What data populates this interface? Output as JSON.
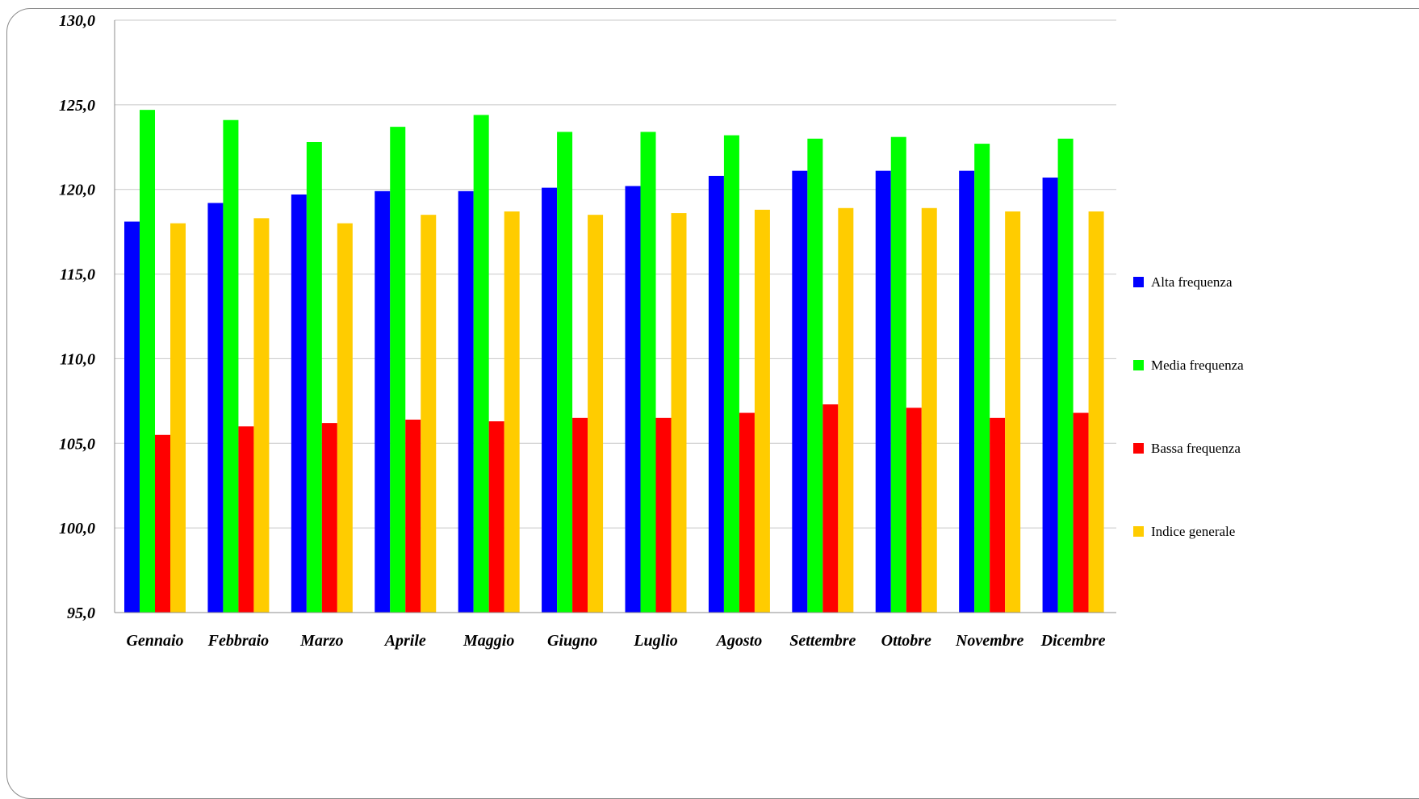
{
  "chart_data": {
    "type": "bar",
    "title": "",
    "xlabel": "",
    "ylabel": "",
    "ylim": [
      95,
      130
    ],
    "yticks": [
      95,
      100,
      105,
      110,
      115,
      120,
      125,
      130
    ],
    "ytick_labels": [
      "95,0",
      "100,0",
      "105,0",
      "110,0",
      "115,0",
      "120,0",
      "125,0",
      "130,0"
    ],
    "grid": true,
    "legend_position": "right",
    "categories": [
      "Gennaio",
      "Febbraio",
      "Marzo",
      "Aprile",
      "Maggio",
      "Giugno",
      "Luglio",
      "Agosto",
      "Settembre",
      "Ottobre",
      "Novembre",
      "Dicembre"
    ],
    "series": [
      {
        "name": "Alta frequenza",
        "color": "#0000ff",
        "values": [
          118.1,
          119.2,
          119.7,
          119.9,
          119.9,
          120.1,
          120.2,
          120.8,
          121.1,
          121.1,
          121.1,
          120.7
        ]
      },
      {
        "name": "Media frequenza",
        "color": "#00ff00",
        "values": [
          124.7,
          124.1,
          122.8,
          123.7,
          124.4,
          123.4,
          123.4,
          123.2,
          123.0,
          123.1,
          122.7,
          123.0
        ]
      },
      {
        "name": "Bassa frequenza",
        "color": "#ff0000",
        "values": [
          105.5,
          106.0,
          106.2,
          106.4,
          106.3,
          106.5,
          106.5,
          106.8,
          107.3,
          107.1,
          106.5,
          106.8
        ]
      },
      {
        "name": "Indice generale",
        "color": "#ffcc00",
        "values": [
          118.0,
          118.3,
          118.0,
          118.5,
          118.7,
          118.5,
          118.6,
          118.8,
          118.9,
          118.9,
          118.7,
          118.7
        ]
      }
    ]
  }
}
